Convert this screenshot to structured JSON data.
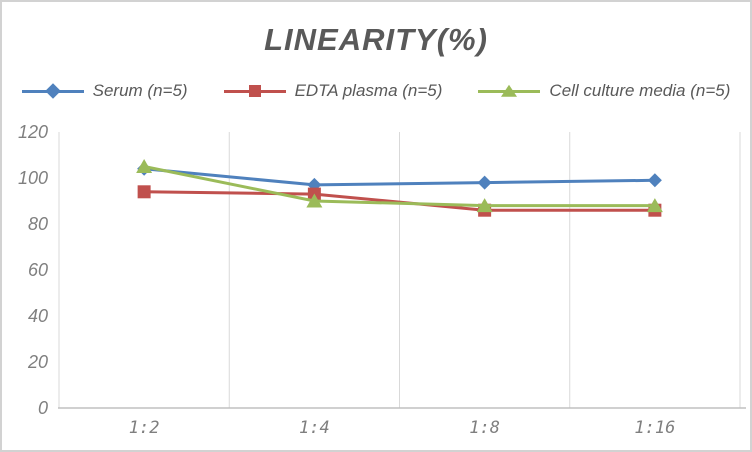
{
  "window": {
    "background": "#FFFFFF",
    "border_color": "#D2D2D2"
  },
  "chart_data": {
    "type": "line",
    "title": "LINEARITY(%)",
    "title_color": "#595959",
    "categories": [
      "1:2",
      "1:4",
      "1:8",
      "1:16"
    ],
    "series": [
      {
        "name": "Serum (n=5)",
        "color": "#4F81BD",
        "marker": "diamond",
        "values": [
          104,
          97,
          98,
          99
        ]
      },
      {
        "name": "EDTA plasma (n=5)",
        "color": "#C0504D",
        "marker": "square",
        "values": [
          94,
          93,
          86,
          86
        ]
      },
      {
        "name": "Cell culture media (n=5)",
        "color": "#9BBB59",
        "marker": "triangle",
        "values": [
          105,
          90,
          88,
          88
        ]
      }
    ],
    "xlabel": "",
    "ylabel": "",
    "ylim": [
      0,
      120
    ],
    "yticks": [
      0,
      20,
      40,
      60,
      80,
      100,
      120
    ],
    "grid": "vertical-only",
    "gridline_color": "#D9D9D9",
    "axis_line_color": "#C0C0C0",
    "tick_label_color": "#7F7F7F",
    "legend_position": "top"
  }
}
